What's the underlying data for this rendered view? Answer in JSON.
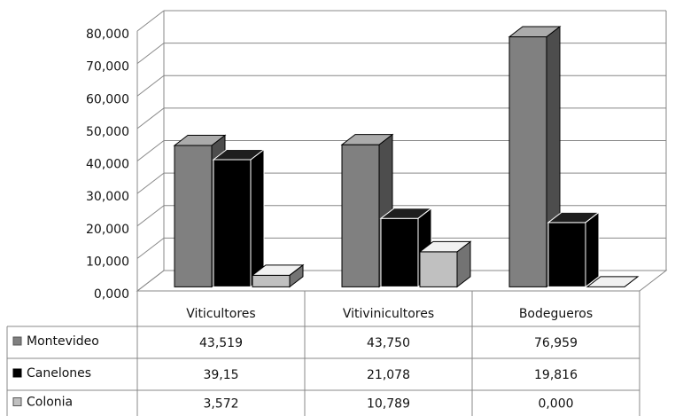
{
  "chart_data": {
    "type": "bar3d",
    "categories": [
      "Viticultores",
      "Vitivinicultores",
      "Bodegueros"
    ],
    "series": [
      {
        "name": "Montevideo",
        "color": "#808080",
        "values": [
          43.519,
          43.75,
          76.959
        ],
        "value_labels": [
          "43,519",
          "43,750",
          "76,959"
        ]
      },
      {
        "name": "Canelones",
        "color": "#000000",
        "values": [
          39.15,
          21.078,
          19.816
        ],
        "value_labels": [
          "39,15",
          "21,078",
          "19,816"
        ]
      },
      {
        "name": "Colonia",
        "color": "#c0c0c0",
        "values": [
          3.572,
          10.789,
          0
        ],
        "value_labels": [
          "3,572",
          "10,789",
          "0,000"
        ]
      }
    ],
    "ylim": [
      0,
      80
    ],
    "yticks": [
      {
        "value": 0,
        "label": "0,000"
      },
      {
        "value": 10,
        "label": "10,000"
      },
      {
        "value": 20,
        "label": "20,000"
      },
      {
        "value": 30,
        "label": "30,000"
      },
      {
        "value": 40,
        "label": "40,000"
      },
      {
        "value": 50,
        "label": "50,000"
      },
      {
        "value": 60,
        "label": "60,000"
      },
      {
        "value": 70,
        "label": "70,000"
      },
      {
        "value": 80,
        "label": "80,000"
      }
    ],
    "grid": true
  }
}
